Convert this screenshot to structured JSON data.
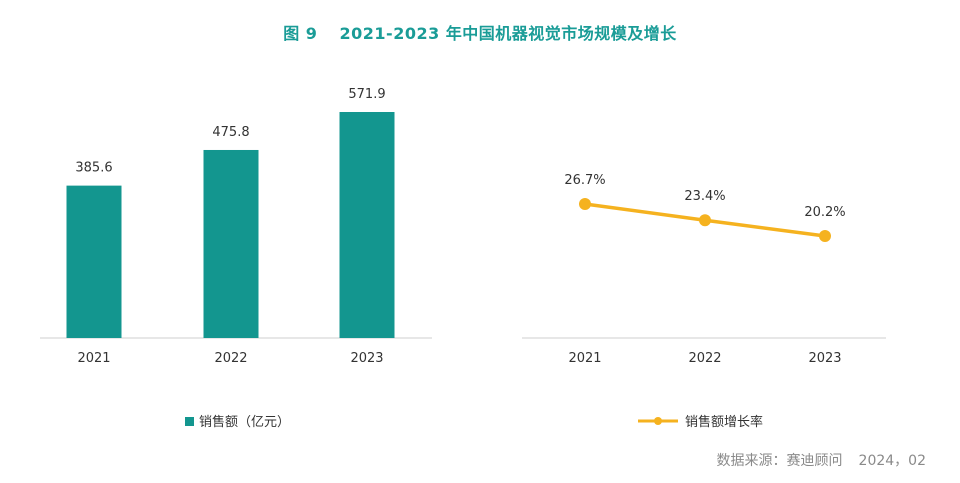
{
  "figure": {
    "prefix": "图",
    "number": "9",
    "title": "2021-2023 年中国机器视觉市场规模及增长"
  },
  "source": {
    "label": "数据来源：赛迪顾问",
    "date": "2024，02"
  },
  "colors": {
    "title": "#1a9c97",
    "bar": "#13968f",
    "line": "#f5b21f",
    "axis": "#cfcfcf",
    "text": "#333333"
  },
  "chart_data": [
    {
      "type": "bar",
      "categories": [
        "2021",
        "2022",
        "2023"
      ],
      "series": [
        {
          "name": "销售额（亿元）",
          "values": [
            385.6,
            475.8,
            571.9
          ]
        }
      ],
      "data_labels": [
        "385.6",
        "475.8",
        "571.9"
      ],
      "legend": "bottom",
      "grid": false
    },
    {
      "type": "line",
      "categories": [
        "2021",
        "2022",
        "2023"
      ],
      "series": [
        {
          "name": "销售额增长率",
          "values": [
            26.7,
            23.4,
            20.2
          ]
        }
      ],
      "data_labels": [
        "26.7%",
        "23.4%",
        "20.2%"
      ],
      "legend": "bottom",
      "grid": false
    }
  ]
}
